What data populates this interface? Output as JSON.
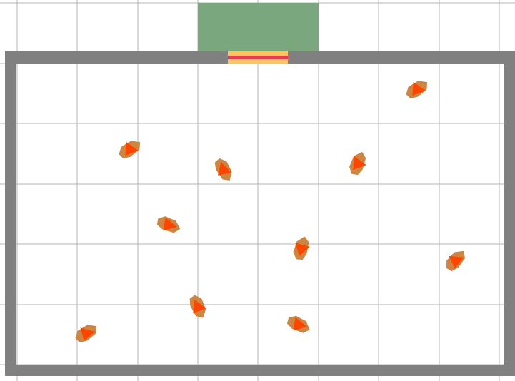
{
  "scene": {
    "colors": {
      "background": "#ffffff",
      "grid": "#b4b4b4",
      "wall": "#808080",
      "exit_zone": "#7ba77e",
      "door": "#fcc65e",
      "door_stripe": "#e2404a",
      "agent_body": "#cd853f",
      "agent_heading": "#ff4500"
    },
    "agent_count": 10,
    "icons": {
      "agent": "pedestrian-agent-icon",
      "door": "exit-door-icon"
    }
  }
}
